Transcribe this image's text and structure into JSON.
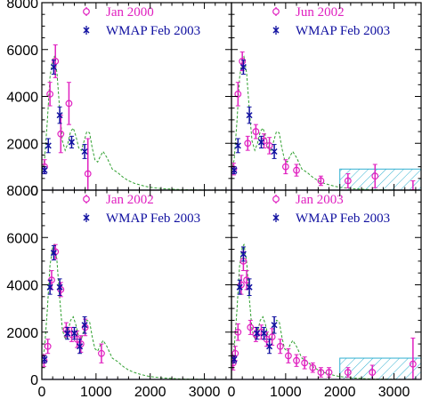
{
  "chart_data": [
    {
      "type": "scatter",
      "panel": "top-left",
      "title": "",
      "xlabel": "",
      "ylabel": "",
      "xlim": [
        0,
        3500
      ],
      "ylim": [
        0,
        8000
      ],
      "grid": false,
      "legend_position": "top-right",
      "series": [
        {
          "name": "Jan 2000",
          "marker": "circle",
          "color": "#e020c0",
          "points": [
            {
              "x": 50,
              "y": 1000,
              "err": 300
            },
            {
              "x": 150,
              "y": 4100,
              "err": 500
            },
            {
              "x": 250,
              "y": 5500,
              "err": 700
            },
            {
              "x": 350,
              "y": 2400,
              "err": 800
            },
            {
              "x": 500,
              "y": 3700,
              "err": 900
            },
            {
              "x": 850,
              "y": 700,
              "err": 1500
            }
          ]
        },
        {
          "name": "WMAP Feb 2003",
          "marker": "x",
          "color": "#1010a0",
          "points": [
            {
              "x": 50,
              "y": 850,
              "err": 150
            },
            {
              "x": 120,
              "y": 1900,
              "err": 300
            },
            {
              "x": 220,
              "y": 5250,
              "err": 300
            },
            {
              "x": 330,
              "y": 3200,
              "err": 350
            },
            {
              "x": 550,
              "y": 2050,
              "err": 250
            },
            {
              "x": 790,
              "y": 1650,
              "err": 300
            }
          ]
        }
      ],
      "model_curve": {
        "color": "#30a030",
        "x": [
          2,
          50,
          100,
          150,
          200,
          230,
          280,
          330,
          380,
          430,
          480,
          530,
          580,
          630,
          680,
          730,
          780,
          830,
          880,
          930,
          980,
          1030,
          1080,
          1130,
          1200,
          1300,
          1400,
          1500,
          1600,
          1700,
          1800,
          1900,
          2000,
          2200,
          2400,
          2600,
          3000,
          3400
        ],
        "y": [
          800,
          1300,
          2900,
          4800,
          5600,
          5700,
          5000,
          3400,
          2100,
          1700,
          2000,
          2500,
          2650,
          2300,
          1800,
          1700,
          2100,
          2500,
          2450,
          1800,
          1300,
          1200,
          1450,
          1650,
          1400,
          900,
          750,
          550,
          400,
          300,
          230,
          170,
          120,
          70,
          40,
          20,
          8,
          3
        ]
      },
      "hatched_region": null
    },
    {
      "type": "scatter",
      "panel": "top-right",
      "title": "",
      "xlabel": "",
      "ylabel": "",
      "xlim": [
        0,
        3500
      ],
      "ylim": [
        0,
        8000
      ],
      "grid": false,
      "legend_position": "top-right",
      "series": [
        {
          "name": "Jun 2002",
          "marker": "circle",
          "color": "#e020c0",
          "points": [
            {
              "x": 40,
              "y": 900,
              "err": 250
            },
            {
              "x": 120,
              "y": 4100,
              "err": 500
            },
            {
              "x": 200,
              "y": 5500,
              "err": 400
            },
            {
              "x": 300,
              "y": 2000,
              "err": 300
            },
            {
              "x": 450,
              "y": 2500,
              "err": 300
            },
            {
              "x": 600,
              "y": 2100,
              "err": 300
            },
            {
              "x": 700,
              "y": 1900,
              "err": 350
            },
            {
              "x": 1000,
              "y": 1000,
              "err": 300
            },
            {
              "x": 1200,
              "y": 850,
              "err": 250
            },
            {
              "x": 1650,
              "y": 400,
              "err": 200
            },
            {
              "x": 2150,
              "y": 400,
              "err": 300
            },
            {
              "x": 2650,
              "y": 600,
              "err": 500
            },
            {
              "x": 3350,
              "y": -100,
              "err": 500
            }
          ]
        },
        {
          "name": "WMAP Feb 2003",
          "marker": "x",
          "color": "#1010a0",
          "points": [
            {
              "x": 50,
              "y": 850,
              "err": 150
            },
            {
              "x": 120,
              "y": 1900,
              "err": 300
            },
            {
              "x": 220,
              "y": 5250,
              "err": 300
            },
            {
              "x": 330,
              "y": 3200,
              "err": 350
            },
            {
              "x": 550,
              "y": 2050,
              "err": 250
            },
            {
              "x": 790,
              "y": 1650,
              "err": 300
            }
          ]
        }
      ],
      "model_curve": {
        "color": "#30a030",
        "x": [
          2,
          50,
          100,
          150,
          200,
          230,
          280,
          330,
          380,
          430,
          480,
          530,
          580,
          630,
          680,
          730,
          780,
          830,
          880,
          930,
          980,
          1030,
          1080,
          1130,
          1200,
          1300,
          1400,
          1500,
          1600,
          1700,
          1800,
          1900,
          2000,
          2200,
          2400,
          2600,
          3000,
          3400
        ],
        "y": [
          800,
          1300,
          2900,
          4800,
          5600,
          5700,
          5000,
          3400,
          2100,
          1700,
          2000,
          2500,
          2650,
          2300,
          1800,
          1700,
          2100,
          2500,
          2450,
          1800,
          1300,
          1200,
          1450,
          1650,
          1400,
          900,
          750,
          550,
          400,
          300,
          230,
          170,
          120,
          70,
          40,
          20,
          8,
          3
        ]
      },
      "hatched_region": {
        "x": [
          2000,
          3500
        ],
        "y": [
          0,
          900
        ],
        "color": "#30b0d0"
      }
    },
    {
      "type": "scatter",
      "panel": "bottom-left",
      "title": "",
      "xlabel": "",
      "ylabel": "",
      "xlim": [
        0,
        3500
      ],
      "ylim": [
        0,
        8000
      ],
      "grid": false,
      "legend_position": "top-right",
      "series": [
        {
          "name": "Jan 2002",
          "marker": "circle",
          "color": "#e020c0",
          "points": [
            {
              "x": 40,
              "y": 800,
              "err": 250
            },
            {
              "x": 110,
              "y": 1400,
              "err": 300
            },
            {
              "x": 180,
              "y": 4200,
              "err": 400
            },
            {
              "x": 250,
              "y": 5400,
              "err": 300
            },
            {
              "x": 350,
              "y": 3800,
              "err": 300
            },
            {
              "x": 450,
              "y": 2100,
              "err": 300
            },
            {
              "x": 550,
              "y": 1900,
              "err": 300
            },
            {
              "x": 650,
              "y": 1700,
              "err": 350
            },
            {
              "x": 720,
              "y": 1500,
              "err": 350
            },
            {
              "x": 800,
              "y": 2200,
              "err": 350
            },
            {
              "x": 1100,
              "y": 1100,
              "err": 400
            }
          ]
        },
        {
          "name": "WMAP Feb 2003",
          "marker": "x",
          "color": "#1010a0",
          "points": [
            {
              "x": 50,
              "y": 850,
              "err": 150
            },
            {
              "x": 150,
              "y": 3900,
              "err": 300
            },
            {
              "x": 220,
              "y": 5350,
              "err": 300
            },
            {
              "x": 330,
              "y": 3900,
              "err": 350
            },
            {
              "x": 470,
              "y": 1950,
              "err": 250
            },
            {
              "x": 600,
              "y": 1950,
              "err": 250
            },
            {
              "x": 700,
              "y": 1400,
              "err": 300
            },
            {
              "x": 790,
              "y": 2300,
              "err": 350
            }
          ]
        }
      ],
      "model_curve": {
        "color": "#30a030",
        "x": [
          2,
          50,
          100,
          150,
          200,
          230,
          280,
          330,
          380,
          430,
          480,
          530,
          580,
          630,
          680,
          730,
          780,
          830,
          880,
          930,
          980,
          1030,
          1080,
          1130,
          1200,
          1300,
          1400,
          1500,
          1600,
          1700,
          1800,
          1900,
          2000,
          2200,
          2400,
          2600,
          3000,
          3400
        ],
        "y": [
          800,
          1300,
          2900,
          4800,
          5600,
          5700,
          5000,
          3400,
          2100,
          1700,
          2000,
          2500,
          2650,
          2300,
          1800,
          1700,
          2100,
          2500,
          2450,
          1800,
          1300,
          1200,
          1450,
          1650,
          1400,
          900,
          750,
          550,
          400,
          300,
          230,
          170,
          120,
          70,
          40,
          20,
          8,
          3
        ]
      },
      "hatched_region": null
    },
    {
      "type": "scatter",
      "panel": "bottom-right",
      "title": "",
      "xlabel": "",
      "ylabel": "",
      "xlim": [
        0,
        3500
      ],
      "ylim": [
        0,
        8000
      ],
      "grid": false,
      "legend_position": "top-right",
      "series": [
        {
          "name": "Jan 2003",
          "marker": "circle",
          "color": "#e020c0",
          "points": [
            {
              "x": 30,
              "y": 700,
              "err": 300
            },
            {
              "x": 70,
              "y": 1100,
              "err": 300
            },
            {
              "x": 120,
              "y": 2000,
              "err": 350
            },
            {
              "x": 180,
              "y": 4000,
              "err": 400
            },
            {
              "x": 220,
              "y": 5000,
              "err": 400
            },
            {
              "x": 280,
              "y": 4200,
              "err": 400
            },
            {
              "x": 350,
              "y": 2200,
              "err": 300
            },
            {
              "x": 450,
              "y": 1900,
              "err": 300
            },
            {
              "x": 550,
              "y": 2000,
              "err": 300
            },
            {
              "x": 650,
              "y": 1700,
              "err": 300
            },
            {
              "x": 750,
              "y": 1800,
              "err": 350
            },
            {
              "x": 900,
              "y": 1400,
              "err": 300
            },
            {
              "x": 1050,
              "y": 1000,
              "err": 300
            },
            {
              "x": 1200,
              "y": 800,
              "err": 250
            },
            {
              "x": 1350,
              "y": 700,
              "err": 250
            },
            {
              "x": 1500,
              "y": 500,
              "err": 200
            },
            {
              "x": 1650,
              "y": 300,
              "err": 200
            },
            {
              "x": 1800,
              "y": 300,
              "err": 200
            },
            {
              "x": 2150,
              "y": 300,
              "err": 200
            },
            {
              "x": 2600,
              "y": 300,
              "err": 300
            },
            {
              "x": 3350,
              "y": 650,
              "err": 1100
            }
          ]
        },
        {
          "name": "WMAP Feb 2003",
          "marker": "x",
          "color": "#1010a0",
          "points": [
            {
              "x": 50,
              "y": 850,
              "err": 150
            },
            {
              "x": 150,
              "y": 3900,
              "err": 300
            },
            {
              "x": 220,
              "y": 5300,
              "err": 300
            },
            {
              "x": 330,
              "y": 3900,
              "err": 350
            },
            {
              "x": 470,
              "y": 1950,
              "err": 250
            },
            {
              "x": 600,
              "y": 1950,
              "err": 250
            },
            {
              "x": 700,
              "y": 1400,
              "err": 300
            },
            {
              "x": 790,
              "y": 2300,
              "err": 350
            }
          ]
        }
      ],
      "model_curve": {
        "color": "#30a030",
        "x": [
          2,
          50,
          100,
          150,
          200,
          230,
          280,
          330,
          380,
          430,
          480,
          530,
          580,
          630,
          680,
          730,
          780,
          830,
          880,
          930,
          980,
          1030,
          1080,
          1130,
          1200,
          1300,
          1400,
          1500,
          1600,
          1700,
          1800,
          1900,
          2000,
          2200,
          2400,
          2600,
          3000,
          3400
        ],
        "y": [
          800,
          1300,
          2900,
          4800,
          5600,
          5700,
          5000,
          3400,
          2100,
          1700,
          2000,
          2500,
          2650,
          2300,
          1800,
          1700,
          2100,
          2500,
          2450,
          1800,
          1300,
          1200,
          1450,
          1650,
          1400,
          900,
          750,
          550,
          400,
          300,
          230,
          170,
          120,
          70,
          40,
          20,
          8,
          3
        ]
      },
      "hatched_region": {
        "x": [
          2000,
          3500
        ],
        "y": [
          0,
          900
        ],
        "color": "#30b0d0"
      }
    }
  ],
  "y_tick_labels": [
    "0",
    "2000",
    "4000",
    "6000",
    "8000"
  ],
  "x_tick_labels": [
    "0",
    "1000",
    "2000",
    "3000"
  ]
}
